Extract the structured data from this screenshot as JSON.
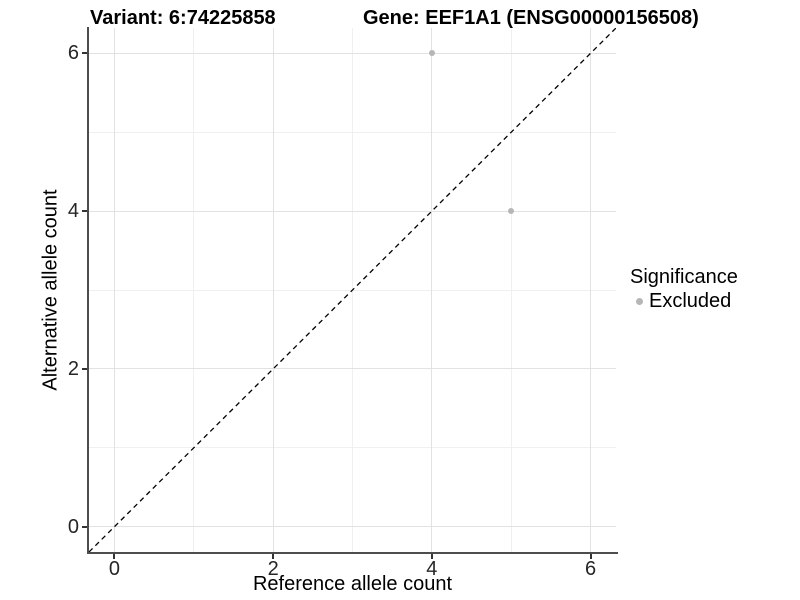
{
  "chart_data": {
    "type": "scatter",
    "title_left": "Variant: 6:74225858",
    "title_right": "Gene: EEF1A1 (ENSG00000156508)",
    "xlabel": "Reference allele count",
    "ylabel": "Alternative allele count",
    "xlim": [
      -0.32,
      6.32
    ],
    "ylim": [
      -0.32,
      6.32
    ],
    "x_major_ticks": [
      0,
      2,
      4,
      6
    ],
    "x_minor_ticks": [
      1,
      3,
      5
    ],
    "y_major_ticks": [
      0,
      2,
      4,
      6
    ],
    "y_minor_ticks": [
      1,
      3,
      5
    ],
    "grid": "on",
    "series": [
      {
        "name": "Excluded",
        "color": "#b6b6b6",
        "points": [
          {
            "x": 4,
            "y": 6
          },
          {
            "x": 5,
            "y": 4
          }
        ]
      }
    ],
    "identity_line": {
      "style": "dashed",
      "color": "#000000",
      "from": [
        -0.32,
        -0.32
      ],
      "to": [
        6.32,
        6.32
      ]
    },
    "legend": {
      "position": "right",
      "title": "Significance",
      "items": [
        {
          "label": "Excluded",
          "color": "#b6b6b6"
        }
      ]
    },
    "colors": {
      "grid_major": "#e2e2e2",
      "grid_minor": "#f0f0f0",
      "axis_line": "#4d4d4d",
      "tick_text": "#262626"
    }
  }
}
